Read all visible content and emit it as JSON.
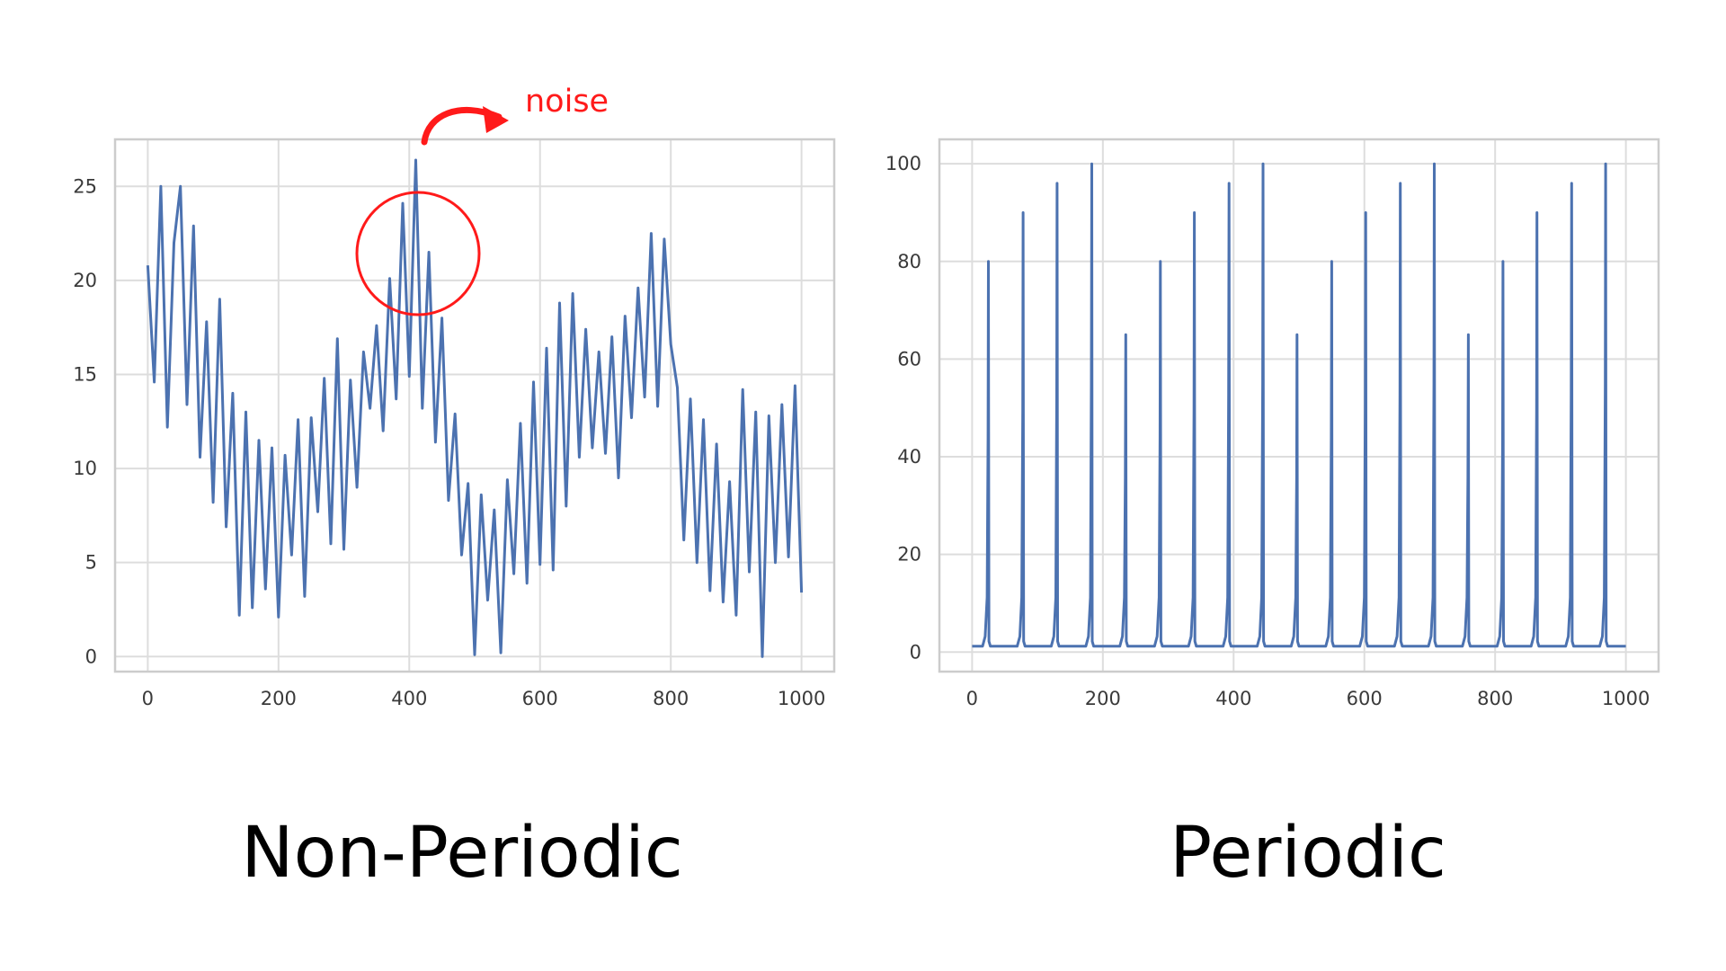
{
  "chart_data": [
    {
      "type": "line",
      "caption": "Non-Periodic",
      "xlim": [
        -50,
        1050
      ],
      "ylim": [
        -0.8,
        27.5
      ],
      "xticks": [
        0,
        200,
        400,
        600,
        800,
        1000
      ],
      "yticks": [
        0,
        5,
        10,
        15,
        20,
        25
      ],
      "grid": true,
      "series": [
        {
          "color": "#4c72b0",
          "x": [
            0,
            10,
            20,
            30,
            40,
            50,
            60,
            70,
            80,
            90,
            100,
            110,
            120,
            130,
            140,
            150,
            160,
            170,
            180,
            190,
            200,
            210,
            220,
            230,
            240,
            250,
            260,
            270,
            280,
            290,
            300,
            310,
            320,
            330,
            340,
            350,
            360,
            370,
            380,
            390,
            400,
            410,
            420,
            430,
            440,
            450,
            460,
            470,
            480,
            490,
            500,
            510,
            520,
            530,
            540,
            550,
            560,
            570,
            580,
            590,
            600,
            610,
            620,
            630,
            640,
            650,
            660,
            670,
            680,
            690,
            700,
            710,
            720,
            730,
            740,
            750,
            760,
            770,
            780,
            790,
            800,
            810,
            820,
            830,
            840,
            850,
            860,
            870,
            880,
            890,
            900,
            910,
            920,
            930,
            940,
            950,
            960,
            970,
            980,
            990,
            1000
          ],
          "y": [
            20.8,
            14.6,
            25.0,
            12.2,
            22.0,
            25.0,
            13.4,
            22.9,
            10.6,
            17.8,
            8.2,
            19.0,
            6.9,
            14.0,
            2.2,
            13.0,
            2.6,
            11.5,
            3.6,
            11.1,
            2.1,
            10.7,
            5.4,
            12.6,
            3.2,
            12.7,
            7.7,
            14.8,
            6.0,
            16.9,
            5.7,
            14.7,
            9.0,
            16.2,
            13.2,
            17.6,
            12.0,
            20.1,
            13.7,
            24.1,
            14.9,
            26.4,
            13.2,
            21.5,
            11.4,
            18.0,
            8.3,
            12.9,
            5.4,
            9.2,
            0.1,
            8.6,
            3.0,
            7.8,
            0.2,
            9.4,
            4.4,
            12.4,
            3.9,
            14.6,
            4.9,
            16.4,
            4.6,
            18.8,
            8.0,
            19.3,
            10.6,
            17.4,
            11.1,
            16.2,
            10.8,
            17.0,
            9.5,
            18.1,
            12.7,
            19.6,
            13.8,
            22.5,
            13.3,
            22.2,
            16.6,
            14.3,
            6.2,
            13.7,
            5.0,
            12.6,
            3.5,
            11.3,
            2.9,
            9.3,
            2.2,
            14.2,
            4.5,
            13.0,
            0.0,
            12.8,
            5.0,
            13.4,
            5.3,
            14.4,
            3.4
          ]
        }
      ]
    },
    {
      "type": "line",
      "caption": "Periodic",
      "xlim": [
        -50,
        1050
      ],
      "ylim": [
        -4,
        105
      ],
      "xticks": [
        0,
        200,
        400,
        600,
        800,
        1000
      ],
      "yticks": [
        0,
        20,
        40,
        60,
        80,
        100
      ],
      "grid": true,
      "spike_base": 1.2,
      "peaks": [
        {
          "x": 25,
          "y": 80
        },
        {
          "x": 78,
          "y": 90
        },
        {
          "x": 130,
          "y": 96
        },
        {
          "x": 183,
          "y": 100
        },
        {
          "x": 235,
          "y": 65
        },
        {
          "x": 288,
          "y": 80
        },
        {
          "x": 340,
          "y": 90
        },
        {
          "x": 393,
          "y": 96
        },
        {
          "x": 445,
          "y": 100
        },
        {
          "x": 497,
          "y": 65
        },
        {
          "x": 550,
          "y": 80
        },
        {
          "x": 602,
          "y": 90
        },
        {
          "x": 655,
          "y": 96
        },
        {
          "x": 707,
          "y": 100
        },
        {
          "x": 759,
          "y": 65
        },
        {
          "x": 812,
          "y": 80
        },
        {
          "x": 864,
          "y": 90
        },
        {
          "x": 917,
          "y": 96
        },
        {
          "x": 969,
          "y": 100
        }
      ],
      "series": [
        {
          "color": "#4c72b0"
        }
      ]
    }
  ],
  "annotation": {
    "text": "noise",
    "color": "#ff1a1a"
  },
  "colors": {
    "grid": "#dddddd",
    "frame": "#cccccc",
    "line": "#4c72b0"
  }
}
